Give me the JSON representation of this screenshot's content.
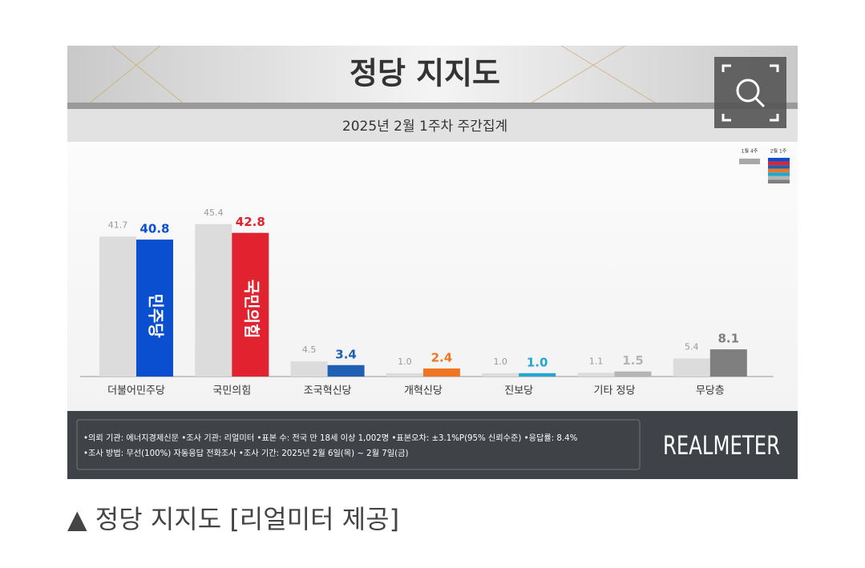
{
  "chart_data": {
    "type": "bar",
    "title": "정당 지지도",
    "subtitle": "2025년 2월 1주차 주간집계",
    "categories": [
      "더불어민주당",
      "국민의힘",
      "조국혁신당",
      "개혁신당",
      "진보당",
      "기타 정당",
      "무당층"
    ],
    "series": [
      {
        "name": "1월 4주",
        "color": "#dcdcdc",
        "values": [
          41.7,
          45.4,
          4.5,
          1.0,
          1.0,
          1.1,
          5.4
        ],
        "value_labels": [
          "41.7",
          "45.4",
          "4.5",
          "1.0",
          "1.0",
          "1.1",
          "5.4"
        ]
      },
      {
        "name": "2월 1주",
        "colors": [
          "#0b4fd1",
          "#e0232e",
          "#1f5fb4",
          "#f07522",
          "#23a6cf",
          "#b5b5b5",
          "#7f7f7f"
        ],
        "values": [
          40.8,
          42.8,
          3.4,
          2.4,
          1.0,
          1.5,
          8.1
        ],
        "value_labels": [
          "40.8",
          "42.8",
          "3.4",
          "2.4",
          "1.0",
          "1.5",
          "8.1"
        ]
      }
    ],
    "bar_texts": [
      "민주당",
      "국민의힘"
    ],
    "notes": [
      "•의뢰 기관: 에너지경제신문 •조사 기관: 리얼미터 •표본 수: 전국 만 18세 이상 1,002명 •표본오차: ±3.1%P(95% 신뢰수준) •응답률: 8.4%",
      "•조사 방법: 무선(100%) 자동응답 전화조사 •조사 기간: 2025년 2월 6일(목) ~ 2월 7일(금)"
    ],
    "brand": "REALMETER"
  },
  "caption": "▲ 정당 지지도 [리얼미터 제공]"
}
